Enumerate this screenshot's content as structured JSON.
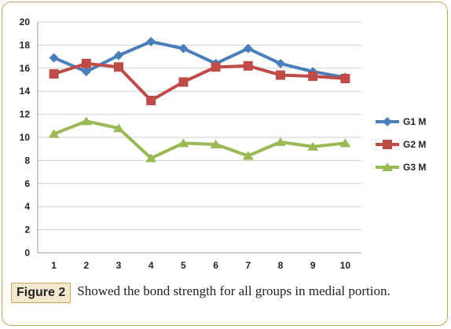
{
  "caption": {
    "label": "Figure 2",
    "text": "Showed the bond strength for all groups in medial portion."
  },
  "chart_data": {
    "type": "line",
    "x": [
      1,
      2,
      3,
      4,
      5,
      6,
      7,
      8,
      9,
      10
    ],
    "ylim": [
      0,
      20
    ],
    "yticks": [
      0,
      2,
      4,
      6,
      8,
      10,
      12,
      14,
      16,
      18,
      20
    ],
    "grid": true,
    "legend": "right",
    "series": [
      {
        "name": "G1 M",
        "color": "#4a7ebb",
        "marker": "diamond",
        "values": [
          16.9,
          15.7,
          17.1,
          18.3,
          17.7,
          16.4,
          17.7,
          16.4,
          15.7,
          15.2
        ]
      },
      {
        "name": "G2 M",
        "color": "#be4b48",
        "marker": "square",
        "values": [
          15.5,
          16.4,
          16.1,
          13.2,
          14.8,
          16.1,
          16.2,
          15.4,
          15.3,
          15.1
        ]
      },
      {
        "name": "G3 M",
        "color": "#98b954",
        "marker": "triangle",
        "values": [
          10.3,
          11.4,
          10.8,
          8.2,
          9.5,
          9.4,
          8.4,
          9.6,
          9.2,
          9.5
        ]
      }
    ]
  }
}
